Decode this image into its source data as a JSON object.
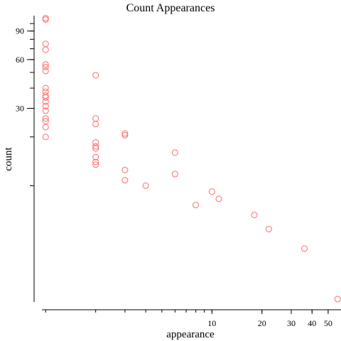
{
  "chart_data": {
    "type": "scatter",
    "title": "Count Appearances",
    "xlabel": "appearance",
    "ylabel": "count",
    "x_scale": "log",
    "y_scale": "log",
    "xlim": [
      0.95,
      58
    ],
    "ylim": [
      1.9,
      112
    ],
    "x_ticks": [
      10,
      20,
      30,
      40,
      50
    ],
    "y_ticks": [
      30,
      60,
      90
    ],
    "grid": false,
    "legend": "none",
    "point_color": "#ff6b6b",
    "points": [
      {
        "x": 1,
        "y": 108
      },
      {
        "x": 1,
        "y": 106
      },
      {
        "x": 1,
        "y": 75
      },
      {
        "x": 1,
        "y": 69
      },
      {
        "x": 1,
        "y": 56
      },
      {
        "x": 1,
        "y": 54
      },
      {
        "x": 1,
        "y": 51
      },
      {
        "x": 1,
        "y": 40
      },
      {
        "x": 1,
        "y": 38
      },
      {
        "x": 1,
        "y": 36
      },
      {
        "x": 1,
        "y": 35
      },
      {
        "x": 1,
        "y": 33
      },
      {
        "x": 1,
        "y": 31
      },
      {
        "x": 1,
        "y": 29
      },
      {
        "x": 1,
        "y": 26
      },
      {
        "x": 1,
        "y": 25
      },
      {
        "x": 1,
        "y": 23
      },
      {
        "x": 1,
        "y": 20
      },
      {
        "x": 2,
        "y": 48
      },
      {
        "x": 2,
        "y": 26
      },
      {
        "x": 2,
        "y": 24
      },
      {
        "x": 2,
        "y": 18.5
      },
      {
        "x": 2,
        "y": 17.5
      },
      {
        "x": 2,
        "y": 17
      },
      {
        "x": 2,
        "y": 15
      },
      {
        "x": 2,
        "y": 14
      },
      {
        "x": 2,
        "y": 13.5
      },
      {
        "x": 3,
        "y": 21
      },
      {
        "x": 3,
        "y": 20.5
      },
      {
        "x": 3,
        "y": 12.5
      },
      {
        "x": 3,
        "y": 10.8
      },
      {
        "x": 4,
        "y": 10
      },
      {
        "x": 6,
        "y": 16
      },
      {
        "x": 6,
        "y": 11.8
      },
      {
        "x": 8,
        "y": 7.6
      },
      {
        "x": 10,
        "y": 9.2
      },
      {
        "x": 11,
        "y": 8.3
      },
      {
        "x": 18,
        "y": 6.6
      },
      {
        "x": 22,
        "y": 5.4
      },
      {
        "x": 36,
        "y": 4.1
      },
      {
        "x": 57,
        "y": 2.0
      }
    ]
  }
}
